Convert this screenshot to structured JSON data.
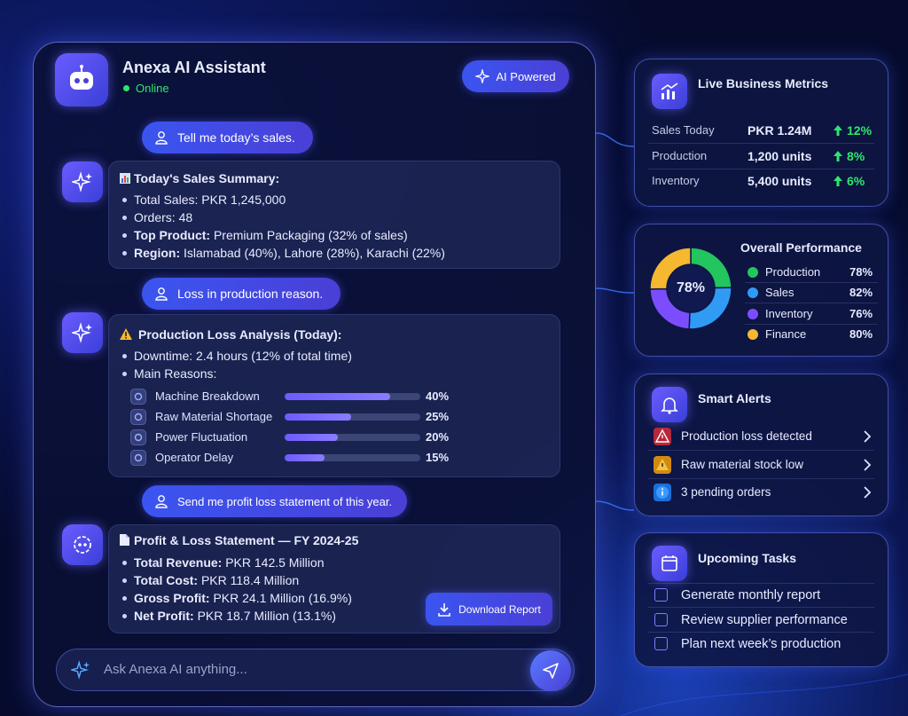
{
  "assistant": {
    "title": "Anexa AI Assistant",
    "status": "Online",
    "badge": "AI Powered"
  },
  "messages": {
    "q1": "Tell me today’s sales.",
    "sales_summary": {
      "heading": "Today's Sales Summary:",
      "items": [
        {
          "label": "Total Sales:",
          "text": "PKR 1,245,000"
        },
        {
          "label": "Orders:",
          "text": "48"
        },
        {
          "label": "Top Product:",
          "text": "Premium Packaging (32% of sales)"
        },
        {
          "label": "Region:",
          "text": "Islamabad (40%), Lahore (28%), Karachi (22%)"
        }
      ]
    },
    "q2": "Loss in production reason.",
    "loss_analysis": {
      "heading": "Production Loss Analysis (Today):",
      "items": [
        {
          "label": "Downtime:",
          "text": "2.4 hours (12% of total time)"
        },
        {
          "label": "Main Reasons:",
          "text": ""
        }
      ],
      "reasons": [
        {
          "name": "Machine Breakdown",
          "value": 40,
          "label": "40%"
        },
        {
          "name": "Raw Material Shortage",
          "value": 25,
          "label": "25%"
        },
        {
          "name": "Power Fluctuation",
          "value": 20,
          "label": "20%"
        },
        {
          "name": "Operator Delay",
          "value": 15,
          "label": "15%"
        }
      ]
    },
    "q3": "Send me profit loss statement of this year.",
    "pl_statement": {
      "heading": "Profit & Loss Statement — FY 2024-25",
      "items": [
        {
          "label": "Total Revenue:",
          "text": "PKR 142.5 Million"
        },
        {
          "label": "Total Cost:",
          "text": "PKR 118.4 Million"
        },
        {
          "label": "Gross Profit:",
          "text": "PKR 24.1 Million (16.9%)"
        },
        {
          "label": "Net Profit:",
          "text": "PKR 18.7 Million (13.1%)"
        }
      ],
      "button": "Download Report"
    }
  },
  "input_placeholder": "Ask Anexa AI anything...",
  "metrics": {
    "title": "Live Business Metrics",
    "rows": [
      {
        "label": "Sales Today",
        "value": "PKR 1.24M",
        "change": "12%"
      },
      {
        "label": "Production",
        "value": "1,200 units",
        "change": "8%"
      },
      {
        "label": "Inventory",
        "value": "5,400 units",
        "change": "6%"
      }
    ]
  },
  "performance": {
    "title": "Overall Performance",
    "center": {
      "value": 78,
      "label": "78%"
    },
    "items": [
      {
        "name": "Production",
        "value": 78,
        "label": "78%",
        "color": "#22c55e"
      },
      {
        "name": "Sales",
        "value": 82,
        "label": "82%",
        "color": "#2f9bf5"
      },
      {
        "name": "Inventory",
        "value": 76,
        "label": "76%",
        "color": "#7c4dff"
      },
      {
        "name": "Finance",
        "value": 80,
        "label": "80%",
        "color": "#f5b82e"
      }
    ]
  },
  "alerts": {
    "title": "Smart Alerts",
    "items": [
      "Production loss detected",
      "Raw material stock low",
      "3 pending orders"
    ]
  },
  "tasks": {
    "title": "Upcoming Tasks",
    "items": [
      "Generate monthly report",
      "Review supplier performance",
      "Plan next week’s production"
    ]
  }
}
